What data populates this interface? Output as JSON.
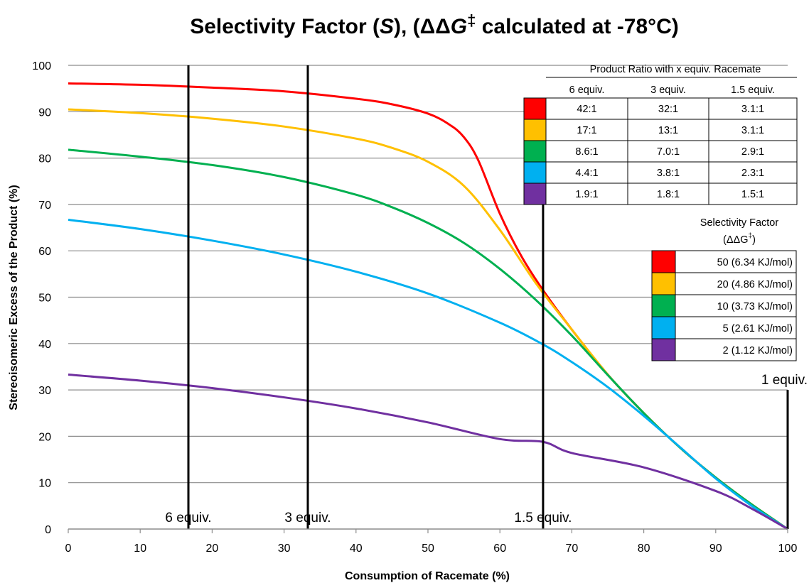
{
  "chart_data": {
    "type": "line",
    "title": {
      "prefix": "Selectivity Factor (",
      "italic_var": "S",
      "middle": "), (ΔΔ",
      "italic_g": "G",
      "superscript": "‡",
      "suffix": " calculated at -78°C)"
    },
    "xlabel": "Consumption of Racemate (%)",
    "ylabel": "Stereoisomeric Excess of the Product (%)",
    "xlim": [
      0,
      100
    ],
    "ylim": [
      0,
      100
    ],
    "xticks": [
      0,
      10,
      20,
      30,
      40,
      50,
      60,
      70,
      80,
      90,
      100
    ],
    "yticks": [
      0,
      10,
      20,
      30,
      40,
      50,
      60,
      70,
      80,
      90,
      100
    ],
    "grid": "horizontal",
    "series": [
      {
        "name": "50 (6.34 KJ/mol)",
        "color": "#ff0000",
        "selectivity": 50,
        "x": [
          0,
          10,
          20,
          30,
          40,
          45,
          50,
          53,
          55,
          57,
          60,
          63,
          66,
          70,
          75,
          80,
          85,
          90,
          95,
          100
        ],
        "values": [
          96.1,
          95.8,
          95.2,
          94.4,
          92.8,
          91.6,
          89.6,
          87.2,
          84.5,
          79.5,
          68.0,
          58.8,
          51.5,
          43.0,
          33.3,
          25.0,
          17.6,
          11.1,
          5.3,
          0
        ]
      },
      {
        "name": "20 (4.86 KJ/mol)",
        "color": "#ffc000",
        "selectivity": 20,
        "x": [
          0,
          10,
          20,
          30,
          40,
          45,
          50,
          55,
          60,
          65,
          70,
          75,
          80,
          85,
          90,
          95,
          100
        ],
        "values": [
          90.5,
          89.7,
          88.5,
          86.8,
          84.2,
          82.2,
          79.2,
          74.0,
          64.5,
          53.0,
          43.0,
          33.3,
          25.0,
          17.6,
          11.1,
          5.3,
          0
        ]
      },
      {
        "name": "10 (3.73 KJ/mol)",
        "color": "#00b050",
        "selectivity": 10,
        "x": [
          0,
          10,
          20,
          30,
          40,
          45,
          50,
          55,
          60,
          65,
          70,
          75,
          80,
          85,
          90,
          95,
          100
        ],
        "values": [
          81.8,
          80.3,
          78.5,
          75.9,
          72.1,
          69.4,
          66.0,
          61.7,
          56.1,
          49.4,
          41.7,
          33.2,
          25.0,
          17.6,
          11.1,
          5.3,
          0
        ]
      },
      {
        "name": "5 (2.61 KJ/mol)",
        "color": "#00b0f0",
        "selectivity": 5,
        "x": [
          0,
          10,
          20,
          30,
          40,
          50,
          60,
          66,
          70,
          75,
          80,
          85,
          90,
          95,
          100
        ],
        "values": [
          66.7,
          64.7,
          62.2,
          59.2,
          55.5,
          50.8,
          44.5,
          39.8,
          36.0,
          30.6,
          24.4,
          17.7,
          10.9,
          5.0,
          0
        ]
      },
      {
        "name": "2 (1.12 KJ/mol)",
        "color": "#7030a0",
        "selectivity": 2,
        "x": [
          0,
          10,
          20,
          30,
          40,
          50,
          60,
          66,
          70,
          80,
          90,
          95,
          100
        ],
        "values": [
          33.3,
          32.0,
          30.4,
          28.4,
          26.0,
          23.0,
          19.4,
          18.8,
          16.4,
          13.3,
          8.2,
          4.4,
          0
        ]
      }
    ],
    "vertical_markers": [
      {
        "label": "6 equiv.",
        "x": 16.7,
        "ymax": 100
      },
      {
        "label": "3 equiv.",
        "x": 33.3,
        "ymax": 100
      },
      {
        "label": "1.5 equiv.",
        "x": 66.0,
        "ymax": 70
      },
      {
        "label": "1 equiv.",
        "x": 100,
        "ymax": 30
      }
    ],
    "ratio_table": {
      "heading": "Product Ratio with x equiv. Racemate",
      "columns": [
        "6 equiv.",
        "3 equiv.",
        "1.5 equiv."
      ],
      "rows": [
        {
          "color": "#ff0000",
          "cells": [
            "42:1",
            "32:1",
            "3.1:1"
          ]
        },
        {
          "color": "#ffc000",
          "cells": [
            "17:1",
            "13:1",
            "3.1:1"
          ]
        },
        {
          "color": "#00b050",
          "cells": [
            "8.6:1",
            "7.0:1",
            "2.9:1"
          ]
        },
        {
          "color": "#00b0f0",
          "cells": [
            "4.4:1",
            "3.8:1",
            "2.3:1"
          ]
        },
        {
          "color": "#7030a0",
          "cells": [
            "1.9:1",
            "1.8:1",
            "1.5:1"
          ]
        }
      ]
    },
    "legend": {
      "title_line1": "Selectivity Factor",
      "title_line2_prefix": "(ΔΔG",
      "title_line2_sup": "‡",
      "title_line2_suffix": ")",
      "placement": "right",
      "entries": [
        {
          "color": "#ff0000",
          "label": "50 (6.34 KJ/mol)"
        },
        {
          "color": "#ffc000",
          "label": "20 (4.86 KJ/mol)"
        },
        {
          "color": "#00b050",
          "label": "10 (3.73 KJ/mol)"
        },
        {
          "color": "#00b0f0",
          "label": "5 (2.61 KJ/mol)"
        },
        {
          "color": "#7030a0",
          "label": "2 (1.12 KJ/mol)"
        }
      ]
    }
  }
}
